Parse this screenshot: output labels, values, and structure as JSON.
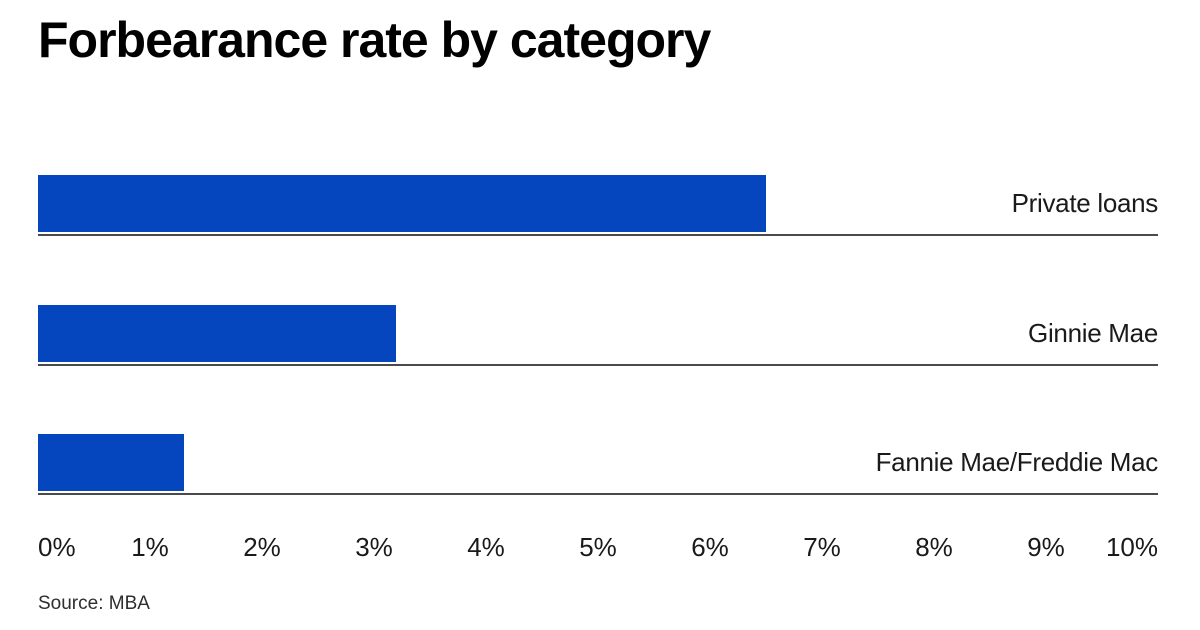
{
  "header": {
    "title": "Forbearance rate by category"
  },
  "chart_data": {
    "type": "bar",
    "orientation": "horizontal",
    "title": "Forbearance rate by category",
    "categories": [
      "Private loans",
      "Ginnie Mae",
      "Fannie Mae/Freddie Mac"
    ],
    "values": [
      6.5,
      3.2,
      1.3
    ],
    "value_unit": "%",
    "xlim": [
      0,
      10
    ],
    "ticks": [
      "0%",
      "1%",
      "2%",
      "3%",
      "4%",
      "5%",
      "6%",
      "7%",
      "8%",
      "9%",
      "10%"
    ],
    "xlabel": "",
    "ylabel": "",
    "grid": "off",
    "legend": "none",
    "bar_color": "#0546be",
    "row_line_color": "#4a4a4a",
    "label_position": "right"
  },
  "footer": {
    "source": "Source: MBA"
  }
}
